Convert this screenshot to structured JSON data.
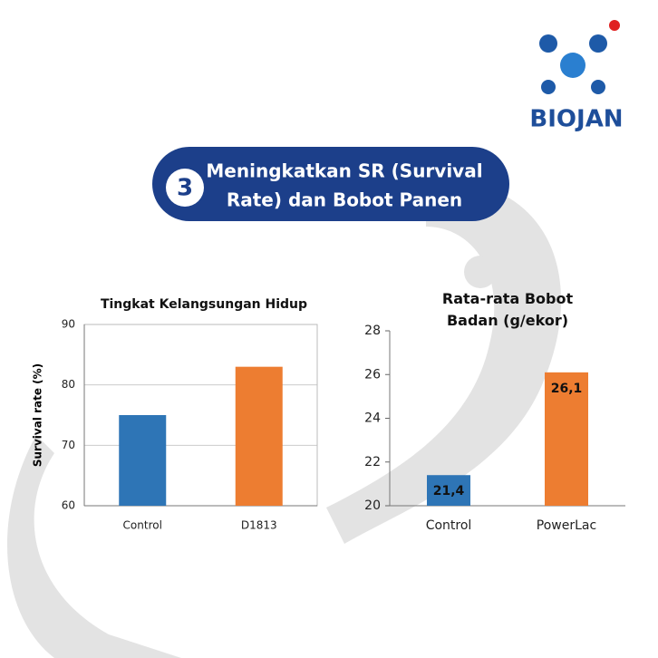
{
  "logo": "BIOJAN",
  "badge": "3",
  "heading": [
    "Meningkatkan SR (Survival",
    "Rate) dan Bobot Panen"
  ],
  "chart_data": [
    {
      "type": "bar",
      "title": "Tingkat Kelangsungan Hidup",
      "ylabel": "Survival rate (%)",
      "categories": [
        "Control",
        "D1813"
      ],
      "values": [
        75,
        83
      ],
      "colors": [
        "#2e75b6",
        "#ed7d31"
      ],
      "ylim": [
        60,
        90
      ],
      "yticks": [
        60,
        70,
        80,
        90
      ],
      "grid": true
    },
    {
      "type": "bar",
      "title": "Rata-rata Bobot Badan (g/ekor)",
      "categories": [
        "Control",
        "PowerLac"
      ],
      "values": [
        21.4,
        26.1
      ],
      "value_labels": [
        "21,4",
        "26,1"
      ],
      "colors": [
        "#2e75b6",
        "#ed7d31"
      ],
      "ylim": [
        20,
        28
      ],
      "yticks": [
        20,
        22,
        24,
        26,
        28
      ],
      "grid": false
    }
  ]
}
